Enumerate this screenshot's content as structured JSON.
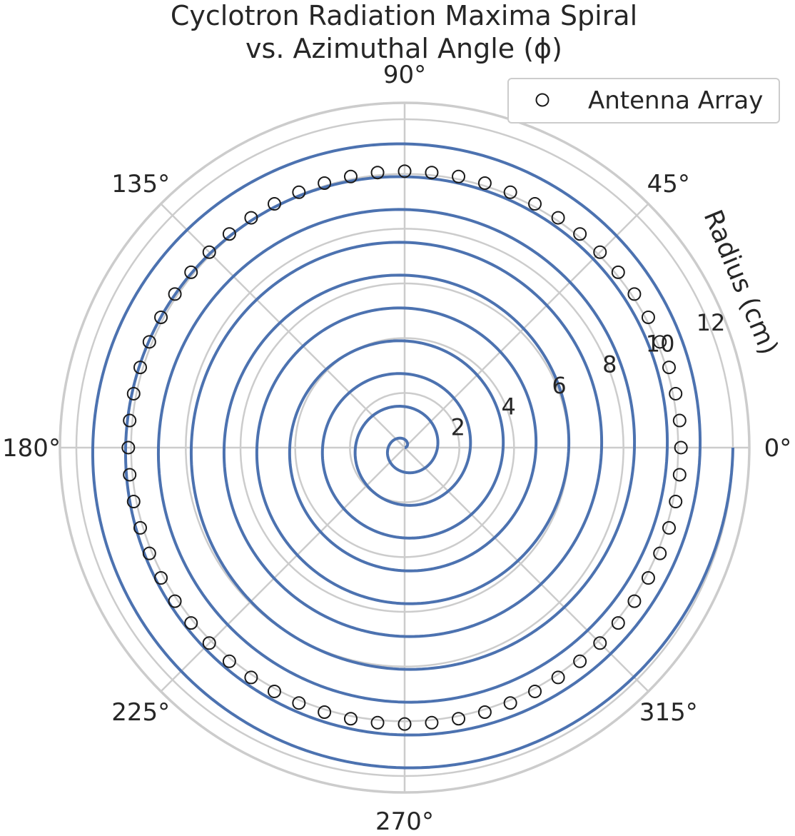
{
  "chart_data": {
    "type": "polar",
    "title_line1": "Cyclotron Radiation Maxima Spiral",
    "title_line2": "vs. Azimuthal Angle (ϕ)",
    "radial_axis_label": "Radius (cm)",
    "angle_tick_labels": [
      "0°",
      "45°",
      "90°",
      "135°",
      "180°",
      "225°",
      "270°",
      "315°"
    ],
    "angle_ticks_deg": [
      0,
      45,
      90,
      135,
      180,
      225,
      270,
      315
    ],
    "radial_ticks": [
      2,
      4,
      6,
      8,
      10,
      12
    ],
    "radial_tick_labels": [
      "2",
      "4",
      "6",
      "8",
      "10",
      "12"
    ],
    "r_max": 12.6,
    "grid": true,
    "legend": {
      "position": "top-right",
      "entries": [
        "Antenna Array"
      ]
    },
    "series": [
      {
        "kind": "line",
        "color": "#4c72b0",
        "spiral": {
          "r_start": 0,
          "r_end": 12,
          "turns": 10,
          "points": 2400
        }
      },
      {
        "kind": "scatter",
        "name": "Antenna Array",
        "marker": "open-circle",
        "color": "#1a1a1a",
        "radius": 10.1,
        "count": 64
      }
    ]
  }
}
